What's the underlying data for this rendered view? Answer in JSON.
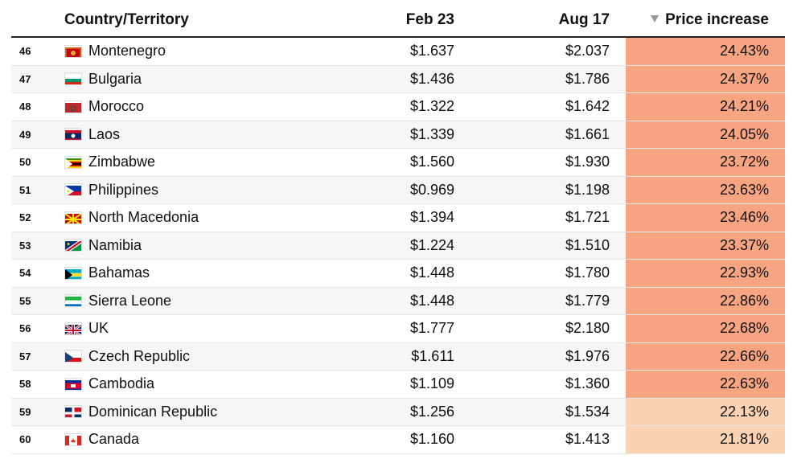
{
  "table": {
    "headers": {
      "country": "Country/Territory",
      "feb": "Feb 23",
      "aug": "Aug 17",
      "increase": "Price increase"
    },
    "rows": [
      {
        "rank": "46",
        "country": "Montenegro",
        "feb": "$1.637",
        "aug": "$2.037",
        "increase": "24.43%",
        "flag": "montenegro-flag-icon",
        "color": "#f7a482"
      },
      {
        "rank": "47",
        "country": "Bulgaria",
        "feb": "$1.436",
        "aug": "$1.786",
        "increase": "24.37%",
        "flag": "bulgaria-flag-icon",
        "color": "#f7a482"
      },
      {
        "rank": "48",
        "country": "Morocco",
        "feb": "$1.322",
        "aug": "$1.642",
        "increase": "24.21%",
        "flag": "morocco-flag-icon",
        "color": "#f7a482"
      },
      {
        "rank": "49",
        "country": "Laos",
        "feb": "$1.339",
        "aug": "$1.661",
        "increase": "24.05%",
        "flag": "laos-flag-icon",
        "color": "#f7a482"
      },
      {
        "rank": "50",
        "country": "Zimbabwe",
        "feb": "$1.560",
        "aug": "$1.930",
        "increase": "23.72%",
        "flag": "zimbabwe-flag-icon",
        "color": "#f7a482"
      },
      {
        "rank": "51",
        "country": "Philippines",
        "feb": "$0.969",
        "aug": "$1.198",
        "increase": "23.63%",
        "flag": "philippines-flag-icon",
        "color": "#f7a482"
      },
      {
        "rank": "52",
        "country": "North Macedonia",
        "feb": "$1.394",
        "aug": "$1.721",
        "increase": "23.46%",
        "flag": "north-macedonia-flag-icon",
        "color": "#f7a482"
      },
      {
        "rank": "53",
        "country": "Namibia",
        "feb": "$1.224",
        "aug": "$1.510",
        "increase": "23.37%",
        "flag": "namibia-flag-icon",
        "color": "#f7a482"
      },
      {
        "rank": "54",
        "country": "Bahamas",
        "feb": "$1.448",
        "aug": "$1.780",
        "increase": "22.93%",
        "flag": "bahamas-flag-icon",
        "color": "#f7a482"
      },
      {
        "rank": "55",
        "country": "Sierra Leone",
        "feb": "$1.448",
        "aug": "$1.779",
        "increase": "22.86%",
        "flag": "sierra-leone-flag-icon",
        "color": "#f7a482"
      },
      {
        "rank": "56",
        "country": "UK",
        "feb": "$1.777",
        "aug": "$2.180",
        "increase": "22.68%",
        "flag": "uk-flag-icon",
        "color": "#f7a482"
      },
      {
        "rank": "57",
        "country": "Czech Republic",
        "feb": "$1.611",
        "aug": "$1.976",
        "increase": "22.66%",
        "flag": "czech-republic-flag-icon",
        "color": "#f7a482"
      },
      {
        "rank": "58",
        "country": "Cambodia",
        "feb": "$1.109",
        "aug": "$1.360",
        "increase": "22.63%",
        "flag": "cambodia-flag-icon",
        "color": "#f7a482"
      },
      {
        "rank": "59",
        "country": "Dominican Republic",
        "feb": "$1.256",
        "aug": "$1.534",
        "increase": "22.13%",
        "flag": "dominican-republic-flag-icon",
        "color": "#fcd2b4"
      },
      {
        "rank": "60",
        "country": "Canada",
        "feb": "$1.160",
        "aug": "$1.413",
        "increase": "21.81%",
        "flag": "canada-flag-icon",
        "color": "#fcd2b4"
      }
    ]
  }
}
